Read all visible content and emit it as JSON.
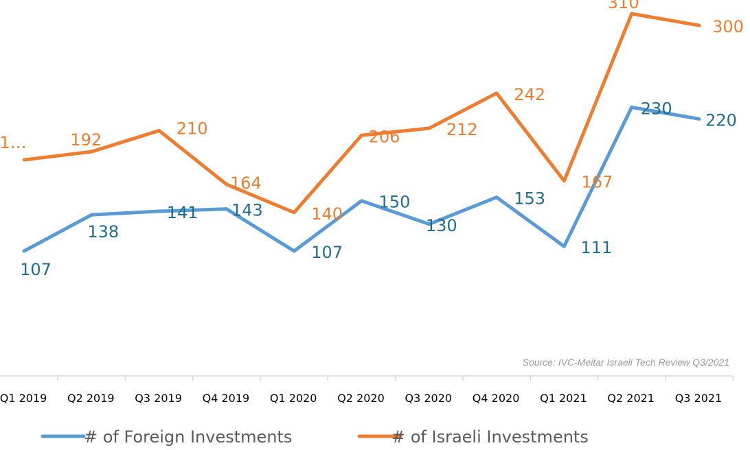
{
  "chart_data": {
    "type": "line",
    "categories": [
      "Q1 2019",
      "Q2 2019",
      "Q3 2019",
      "Q4 2019",
      "Q1 2020",
      "Q2 2020",
      "Q3 2020",
      "Q4 2020",
      "Q1 2021",
      "Q2 2021",
      "Q3 2021"
    ],
    "series": [
      {
        "name": "# of Foreign Investments",
        "color": "#5b9bd5",
        "label_color": "#1f6e8c",
        "values": [
          107,
          138,
          141,
          143,
          107,
          150,
          130,
          153,
          111,
          230,
          220
        ],
        "labels": [
          "107",
          "138",
          "141",
          "143",
          "107",
          "150",
          "130",
          "153",
          "111",
          "230",
          "220"
        ]
      },
      {
        "name": "# of Israeli Investments",
        "color": "#ed7d31",
        "label_color": "#ed7d31",
        "values": [
          185,
          192,
          210,
          164,
          140,
          206,
          212,
          242,
          167,
          310,
          300
        ],
        "labels": [
          "1…",
          "192",
          "210",
          "164",
          "140",
          "206",
          "212",
          "242",
          "167",
          "310",
          "300"
        ]
      }
    ],
    "source": "Source: IVC-Meitar Israeli Tech Review Q3/2021",
    "legend": "bottom",
    "grid": false,
    "ylim": [
      40,
      320
    ]
  }
}
